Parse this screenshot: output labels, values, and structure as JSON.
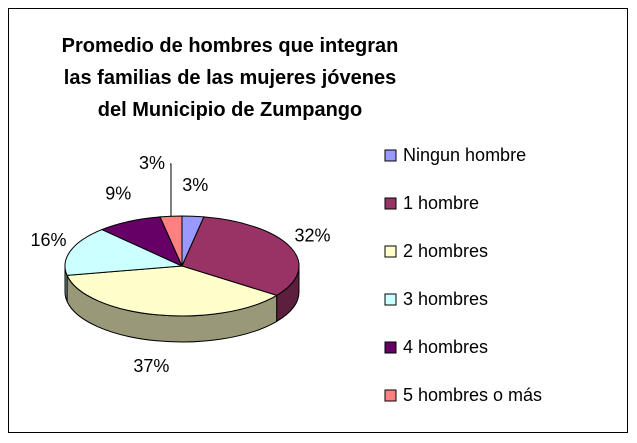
{
  "chart_data": {
    "type": "pie3d",
    "title": "Promedio de hombres que integran las familias de las mujeres jóvenes del Municipio de Zumpango",
    "categories": [
      "Ningun hombre",
      "1 hombre",
      "2 hombres",
      "3 hombres",
      "4 hombres",
      "5 hombres o más"
    ],
    "values": [
      3,
      32,
      37,
      16,
      9,
      3
    ],
    "value_labels": [
      "3%",
      "32%",
      "37%",
      "16%",
      "9%",
      "3%"
    ],
    "colors": [
      "#9999ff",
      "#993366",
      "#ffffcc",
      "#ccffff",
      "#660066",
      "#ff8080"
    ],
    "legend": "right"
  }
}
